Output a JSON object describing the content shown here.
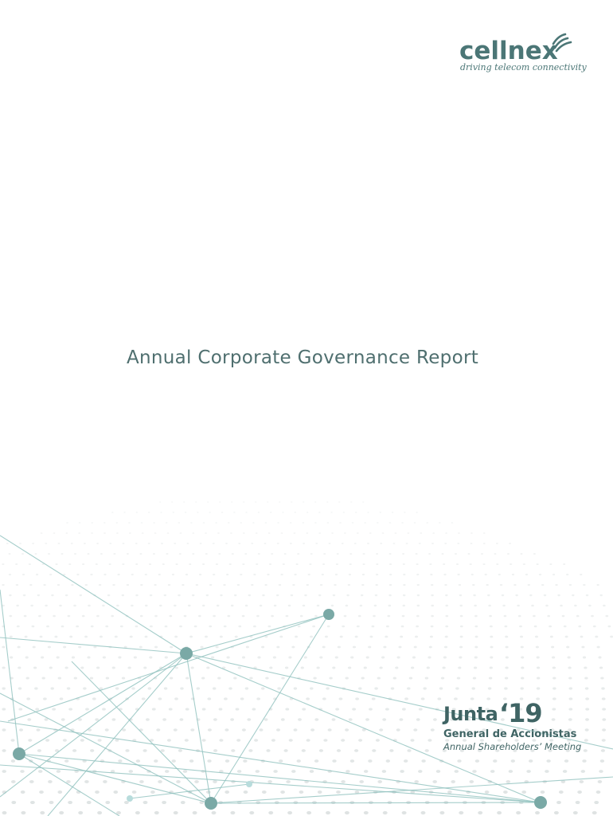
{
  "logo": {
    "wordmark": "cellnex",
    "tagline": "driving telecom connectivity"
  },
  "title": "Annual Corporate Governance Report",
  "event": {
    "word": "Junta",
    "year": "‘19",
    "subtitle": "General de Accionistas",
    "subtitle_en": "Annual Shareholders’ Meeting"
  },
  "colors": {
    "brand": "#4b7676",
    "network_node": "#7aa9a6",
    "network_line": "#8fc1be",
    "dots": "#d6dcdc"
  },
  "icons": [
    "signal-waves-icon"
  ]
}
